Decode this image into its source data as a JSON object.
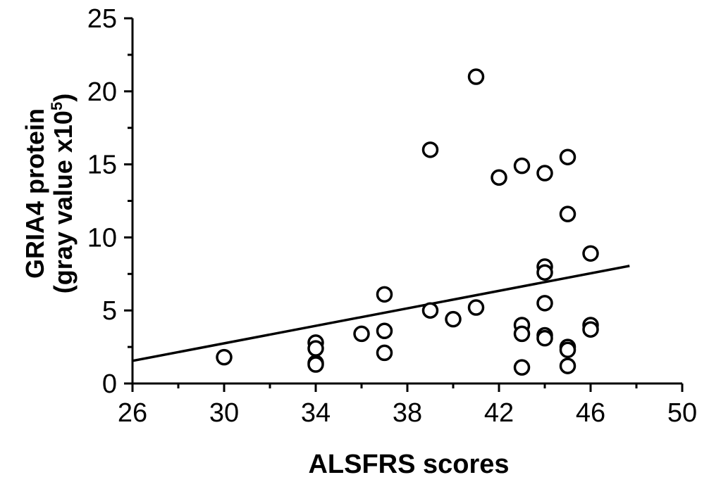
{
  "chart_data": {
    "type": "scatter",
    "xlabel": "ALSFRS scores",
    "ylabel_line1": "GRIA4 protein",
    "ylabel_line2_prefix": "(gray value x10",
    "ylabel_line2_sup": "5",
    "ylabel_line2_suffix": ")",
    "xlim": [
      26,
      50
    ],
    "ylim": [
      0,
      25
    ],
    "xticks": [
      26,
      30,
      34,
      38,
      42,
      46,
      50
    ],
    "xtick_labels": [
      "26",
      "30",
      "34",
      "38",
      "42",
      "46",
      "50"
    ],
    "yticks": [
      0,
      5,
      10,
      15,
      20,
      25
    ],
    "ytick_labels": [
      "0",
      "5",
      "10",
      "15",
      "20",
      "25"
    ],
    "grid": false,
    "points": [
      {
        "x": 30,
        "y": 1.8
      },
      {
        "x": 34,
        "y": 2.8
      },
      {
        "x": 34,
        "y": 2.4
      },
      {
        "x": 34,
        "y": 1.4
      },
      {
        "x": 34,
        "y": 1.3
      },
      {
        "x": 36,
        "y": 3.4
      },
      {
        "x": 37,
        "y": 6.1
      },
      {
        "x": 37,
        "y": 3.6
      },
      {
        "x": 37,
        "y": 2.1
      },
      {
        "x": 39,
        "y": 16.0
      },
      {
        "x": 39,
        "y": 5.0
      },
      {
        "x": 40,
        "y": 4.4
      },
      {
        "x": 41,
        "y": 21.0
      },
      {
        "x": 41,
        "y": 5.2
      },
      {
        "x": 42,
        "y": 14.1
      },
      {
        "x": 43,
        "y": 14.9
      },
      {
        "x": 43,
        "y": 4.0
      },
      {
        "x": 43,
        "y": 3.4
      },
      {
        "x": 43,
        "y": 1.1
      },
      {
        "x": 44,
        "y": 14.4
      },
      {
        "x": 44,
        "y": 8.0
      },
      {
        "x": 44,
        "y": 7.6
      },
      {
        "x": 44,
        "y": 5.5
      },
      {
        "x": 44,
        "y": 3.3
      },
      {
        "x": 44,
        "y": 3.1
      },
      {
        "x": 45,
        "y": 15.5
      },
      {
        "x": 45,
        "y": 11.6
      },
      {
        "x": 45,
        "y": 2.5
      },
      {
        "x": 45,
        "y": 2.3
      },
      {
        "x": 45,
        "y": 1.2
      },
      {
        "x": 46,
        "y": 8.9
      },
      {
        "x": 46,
        "y": 4.0
      },
      {
        "x": 46,
        "y": 3.7
      }
    ],
    "trendline": {
      "x": [
        26,
        47.7
      ],
      "y": [
        1.55,
        8.05
      ]
    }
  }
}
